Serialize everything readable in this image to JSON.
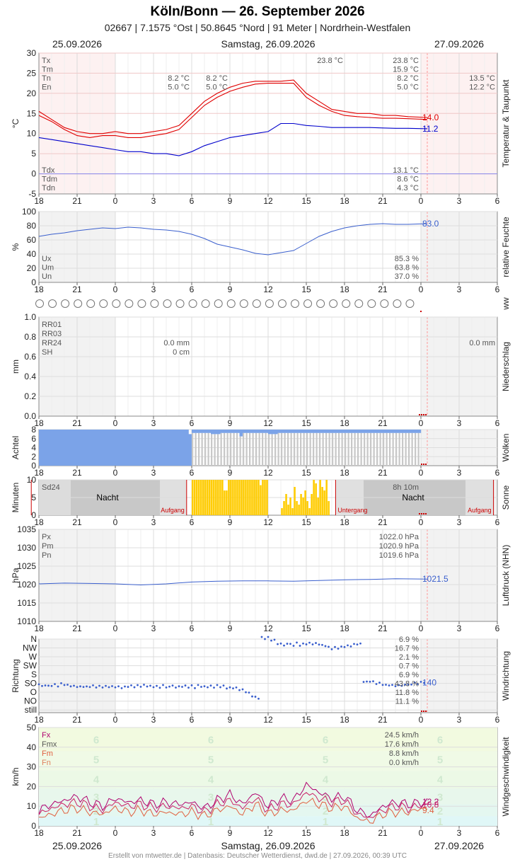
{
  "title": "Köln/Bonn  —  26. September 2026",
  "subtitle": "02667  |  7.1575 °Ost  |  50.8645 °Nord  |  91 Meter  |  Nordrhein-Westfalen",
  "dates": {
    "left": "25.09.2026",
    "center": "Samstag, 26.09.2026",
    "right": "27.09.2026"
  },
  "footer": "Erstellt von mtwetter.de | Datenbasis: Deutscher Wetterdienst, dwd.de | 27.09.2026, 00:39 UTC",
  "colors": {
    "temp": "#e00000",
    "dew": "#0000cc",
    "humidity": "#3a5fcd",
    "rain": "#cc0000",
    "clouds": "#7ba3e8",
    "sun": "#ffcc00",
    "pressure": "#3a5fcd",
    "wind_fx": "#b0006f",
    "wind_fm": "#e06040"
  },
  "x_ticks": [
    "18",
    "21",
    "0",
    "3",
    "6",
    "9",
    "12",
    "15",
    "18",
    "21",
    "0",
    "3",
    "6"
  ],
  "ww_circle_count": 30,
  "chart_data": [
    {
      "type": "line",
      "panel": "temperature",
      "ylabel": "°C",
      "side_label": "Temperatur & Taupunkt",
      "ylim": [
        -5,
        30
      ],
      "yticks": [
        "30",
        "25",
        "20",
        "15",
        "10",
        "5",
        "0",
        "-5"
      ],
      "stats_top": [
        {
          "key": "Tx",
          "left_val": "",
          "mid_val": "",
          "right_val": "23.8 °C",
          "next_val": ""
        },
        {
          "key": "Tm",
          "left_val": "",
          "mid_val": "",
          "right_val": "15.9 °C",
          "next_val": ""
        },
        {
          "key": "Tn",
          "left_val": "8.2 °C",
          "mid_val": "8.2 °C",
          "right_val": "8.2 °C",
          "next_val": "13.5 °C"
        },
        {
          "key": "En",
          "left_val": "5.0 °C",
          "mid_val": "5.0 °C",
          "right_val": "5.0 °C",
          "next_val": "12.2 °C"
        }
      ],
      "max_label": "23.8 °C",
      "stats_bottom": [
        {
          "key": "Tdx",
          "val": "13.1 °C"
        },
        {
          "key": "Tdm",
          "val": "8.6 °C"
        },
        {
          "key": "Tdn",
          "val": "4.3 °C"
        }
      ],
      "series": [
        {
          "name": "",
          "x": [
            18,
            19,
            20,
            21,
            22,
            23,
            24,
            25,
            26,
            27,
            28,
            29,
            30,
            31,
            32,
            33,
            34,
            35,
            36,
            37,
            38,
            39,
            40,
            41,
            42,
            43,
            44,
            45,
            46,
            47,
            48.5
          ],
          "values": [
            15.5,
            13.5,
            11.5,
            10.5,
            10,
            10,
            10.5,
            10,
            10,
            10.5,
            11,
            12,
            15,
            18,
            20,
            21.5,
            22.5,
            23,
            23,
            23,
            23.3,
            20,
            18,
            16,
            15.5,
            15,
            15,
            14.5,
            14.5,
            14.2,
            14.0
          ]
        },
        {
          "name": "",
          "x": [
            18,
            19,
            20,
            21,
            22,
            23,
            24,
            25,
            26,
            27,
            28,
            29,
            30,
            31,
            32,
            33,
            34,
            35,
            36,
            37,
            38,
            39,
            40,
            41,
            42,
            43,
            44,
            45,
            46,
            47,
            48.5
          ],
          "values": [
            14.5,
            13,
            11,
            9.5,
            9,
            9.5,
            9.5,
            9,
            9,
            9.5,
            10,
            11,
            14,
            17,
            19,
            20.5,
            21.5,
            22.3,
            22.5,
            22.5,
            22.5,
            19,
            17,
            15.5,
            14.5,
            14.2,
            14,
            13.8,
            13.8,
            13.7,
            13.5
          ]
        },
        {
          "name": "",
          "x": [
            18,
            19,
            20,
            21,
            22,
            23,
            24,
            25,
            26,
            27,
            28,
            29,
            30,
            31,
            32,
            33,
            34,
            35,
            36,
            37,
            38,
            39,
            40,
            41,
            42,
            43,
            44,
            45,
            46,
            47,
            48.5
          ],
          "values": [
            9,
            8.5,
            8,
            7.5,
            7,
            6.5,
            6,
            5.5,
            5.5,
            5,
            5,
            4.5,
            5.5,
            7,
            8,
            9,
            9.5,
            10,
            10.5,
            12.5,
            12.5,
            12,
            11.8,
            11.5,
            11.5,
            11.5,
            11.5,
            11.4,
            11.3,
            11.3,
            11.2
          ]
        }
      ],
      "end_labels": [
        "14.0",
        "11.2"
      ]
    },
    {
      "type": "line",
      "panel": "humidity",
      "ylabel": "%",
      "side_label": "relative Feuchte",
      "ylim": [
        0,
        100
      ],
      "yticks": [
        "100",
        "80",
        "60",
        "40",
        "20",
        "0"
      ],
      "stats": [
        {
          "key": "Ux",
          "val": "85.3 %"
        },
        {
          "key": "Um",
          "val": "63.8 %"
        },
        {
          "key": "Un",
          "val": "37.0 %"
        }
      ],
      "series": [
        {
          "name": "",
          "x": [
            18,
            19,
            20,
            21,
            22,
            23,
            24,
            25,
            26,
            27,
            28,
            29,
            30,
            31,
            32,
            33,
            34,
            35,
            36,
            37,
            38,
            39,
            40,
            41,
            42,
            43,
            44,
            45,
            46,
            47,
            48.5
          ],
          "values": [
            65,
            68,
            70,
            73,
            75,
            77,
            76,
            78,
            77,
            75,
            74,
            72,
            68,
            62,
            54,
            50,
            46,
            41,
            39,
            42,
            45,
            55,
            65,
            72,
            77,
            80,
            82,
            83,
            82,
            82,
            83
          ]
        }
      ],
      "end_label": "83.0"
    },
    {
      "type": "bar",
      "panel": "precipitation",
      "ylabel": "mm",
      "side_label": "Niederschlag",
      "ylim": [
        0,
        1
      ],
      "yticks": [
        "1.0",
        "0.8",
        "0.6",
        "0.4",
        "0.2",
        "0.0"
      ],
      "stats": [
        {
          "key": "RR01",
          "val": ""
        },
        {
          "key": "RR03",
          "val": ""
        },
        {
          "key": "RR24",
          "val": "0.0 mm"
        },
        {
          "key": "SH",
          "val": "0 cm"
        }
      ],
      "next_day_value": "0.0 mm",
      "values": []
    },
    {
      "type": "bar",
      "panel": "clouds",
      "ylabel": "Achtel",
      "side_label": "Wolken",
      "ylim": [
        0,
        8
      ],
      "yticks": [
        "8",
        "6",
        "4",
        "2",
        "0"
      ],
      "x": [
        18,
        30,
        30.5,
        31,
        32,
        33,
        34,
        35,
        36,
        36.5,
        37,
        38,
        39,
        40,
        41,
        42,
        43,
        44,
        45,
        46,
        47,
        48.0
      ],
      "values": [
        8,
        8,
        7,
        7,
        7,
        7,
        7,
        6.5,
        7,
        7,
        7,
        7,
        7,
        7,
        7,
        7,
        7,
        7,
        7,
        7,
        7,
        7
      ]
    },
    {
      "type": "bar",
      "panel": "sunshine",
      "ylabel": "Minuten",
      "side_label": "Sonne",
      "ylim": [
        0,
        10
      ],
      "yticks": [
        "10",
        "5",
        "0"
      ],
      "stats": [
        {
          "key": "Sd24",
          "val": "8h 10m"
        }
      ],
      "labels": {
        "night": "Nacht",
        "sunrise": "Aufgang",
        "sunset": "Untergang"
      },
      "sunrise_hours": [
        29.6,
        53.7
      ],
      "sunset_hours": [
        17.4,
        41.3
      ],
      "x": [
        30,
        31,
        32,
        33,
        34,
        35,
        36,
        37,
        38,
        39,
        40,
        41
      ],
      "values": [
        10,
        10,
        10,
        10,
        10,
        10,
        3,
        2,
        5,
        5,
        2,
        0
      ]
    },
    {
      "type": "line",
      "panel": "pressure",
      "ylabel": "hPa",
      "side_label": "Luftdruck (NHN)",
      "ylim": [
        1010,
        1035
      ],
      "yticks": [
        "1035",
        "1030",
        "1025",
        "1020",
        "1015",
        "1010"
      ],
      "stats": [
        {
          "key": "Px",
          "val": "1022.0 hPa"
        },
        {
          "key": "Pm",
          "val": "1020.9 hPa"
        },
        {
          "key": "Pn",
          "val": "1019.6 hPa"
        }
      ],
      "series": [
        {
          "name": "",
          "x": [
            18,
            20,
            22,
            24,
            26,
            28,
            30,
            32,
            34,
            36,
            38,
            40,
            42,
            44,
            46,
            48.5
          ],
          "values": [
            1020.2,
            1020.4,
            1020.3,
            1020.2,
            1019.9,
            1020.2,
            1020.7,
            1020.9,
            1021,
            1021,
            1020.9,
            1021.1,
            1021.3,
            1021.4,
            1021.6,
            1021.5
          ]
        }
      ],
      "end_label": "1021.5"
    },
    {
      "type": "scatter",
      "panel": "wind_direction",
      "ylabel": "Richtung",
      "side_label": "Windrichtung",
      "categories": [
        "N",
        "NW",
        "W",
        "SW",
        "S",
        "SO",
        "O",
        "NO",
        "still"
      ],
      "stats": [
        {
          "key": "N",
          "val": "6.9 %"
        },
        {
          "key": "NW",
          "val": "16.7 %"
        },
        {
          "key": "W",
          "val": "2.1 %"
        },
        {
          "key": "SW",
          "val": "0.7 %"
        },
        {
          "key": "S",
          "val": "6.9 %"
        },
        {
          "key": "SO",
          "val": "43.8 %"
        },
        {
          "key": "O",
          "val": "11.8 %"
        },
        {
          "key": "NO",
          "val": "11.1 %"
        }
      ],
      "x": [
        18,
        19,
        20,
        21,
        22,
        23,
        24,
        25,
        26,
        27,
        28,
        29,
        30,
        31,
        32,
        33,
        34,
        35,
        36,
        37,
        38,
        39,
        40,
        41,
        42,
        43,
        44,
        45,
        46,
        47,
        48.5
      ],
      "values": [
        120,
        120,
        125,
        115,
        115,
        115,
        115,
        115,
        120,
        115,
        115,
        115,
        115,
        115,
        115,
        110,
        100,
        60,
        360,
        330,
        330,
        330,
        330,
        310,
        320,
        330,
        140,
        125,
        120,
        125,
        140
      ],
      "end_label": "140"
    },
    {
      "type": "line",
      "panel": "wind_speed",
      "ylabel": "km/h",
      "side_label": "Windgeschwindigkeit",
      "ylim": [
        0,
        50
      ],
      "yticks": [
        "50",
        "40",
        "30",
        "20",
        "10",
        "0"
      ],
      "beaufort_labels": [
        "6",
        "5",
        "4",
        "3",
        "2",
        "1"
      ],
      "stats": [
        {
          "key": "Fx",
          "val": "24.5 km/h"
        },
        {
          "key": "Fmx",
          "val": "17.6 km/h"
        },
        {
          "key": "Fm",
          "val": "8.8 km/h"
        },
        {
          "key": "Fn",
          "val": "0.0 km/h"
        }
      ],
      "series": [
        {
          "name": "",
          "x": [
            18,
            19,
            20,
            21,
            22,
            23,
            24,
            25,
            26,
            27,
            28,
            29,
            30,
            31,
            32,
            33,
            34,
            35,
            36,
            37,
            38,
            39,
            40,
            41,
            42,
            43,
            44,
            45,
            46,
            47,
            48.5
          ],
          "values": [
            8,
            11,
            13,
            15,
            12,
            10,
            14,
            12,
            13,
            11,
            12,
            11,
            12,
            9,
            13,
            16,
            11,
            17,
            10,
            14,
            13,
            21,
            17,
            14,
            15,
            8,
            5,
            10,
            12,
            11,
            12.2
          ]
        },
        {
          "name": "",
          "x": [
            18,
            19,
            20,
            21,
            22,
            23,
            24,
            25,
            26,
            27,
            28,
            29,
            30,
            31,
            32,
            33,
            34,
            35,
            36,
            37,
            38,
            39,
            40,
            41,
            42,
            43,
            44,
            45,
            46,
            47,
            48.5
          ],
          "values": [
            6,
            9,
            11,
            12,
            10,
            8,
            12,
            10,
            11,
            9,
            10,
            9,
            10,
            7,
            11,
            13,
            9,
            14,
            8,
            11,
            11,
            17,
            14,
            12,
            13,
            6,
            4,
            8,
            10,
            9,
            10.8
          ]
        },
        {
          "name": "",
          "x": [
            18,
            19,
            20,
            21,
            22,
            23,
            24,
            25,
            26,
            27,
            28,
            29,
            30,
            31,
            32,
            33,
            34,
            35,
            36,
            37,
            38,
            39,
            40,
            41,
            42,
            43,
            44,
            45,
            46,
            47,
            48.5
          ],
          "values": [
            4,
            6,
            8,
            9,
            7,
            6,
            9,
            7,
            8,
            6,
            7,
            6,
            7,
            5,
            8,
            10,
            6,
            11,
            6,
            8,
            8,
            13,
            11,
            9,
            10,
            4,
            2,
            6,
            7,
            7,
            9.4
          ]
        }
      ],
      "end_labels": [
        "12.2",
        "10.8",
        "9.4"
      ]
    }
  ]
}
